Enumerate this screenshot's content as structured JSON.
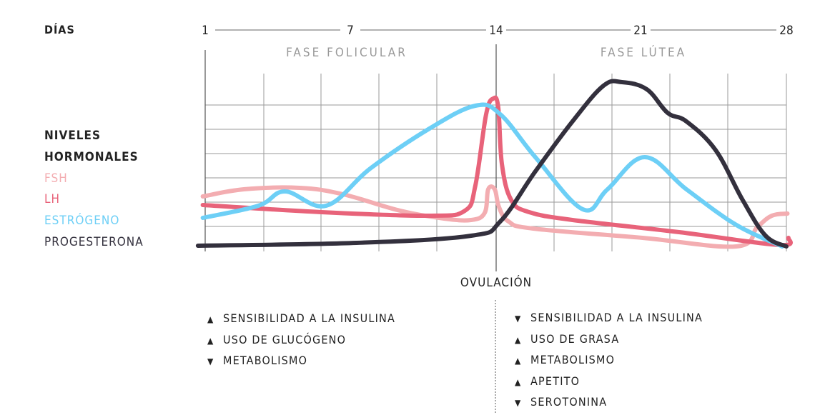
{
  "days_label": "DÍAS",
  "legend": {
    "title_line1": "NIVELES",
    "title_line2": "HORMONALES",
    "items": [
      {
        "name": "FSH",
        "color": "#f3adb1"
      },
      {
        "name": "LH",
        "color": "#e8637a"
      },
      {
        "name": "ESTRÓGENO",
        "color": "#6dcff6"
      },
      {
        "name": "PROGESTERONA",
        "color": "#33303d"
      }
    ]
  },
  "phases": {
    "follicular": "FASE FOLICULAR",
    "luteal": "FASE LÚTEA"
  },
  "ovulation_label": "OVULACIÓN",
  "chart_data": {
    "type": "line",
    "x_ticks": [
      "1",
      "7",
      "14",
      "21",
      "28"
    ],
    "xlim": [
      1,
      28
    ],
    "ylim": [
      0,
      100
    ],
    "grid": true,
    "series": [
      {
        "name": "FSH",
        "color": "#f3adb1",
        "points": [
          [
            0.9,
            30.8
          ],
          [
            2.6,
            34.8
          ],
          [
            4.9,
            35.6
          ],
          [
            6.7,
            32
          ],
          [
            9.4,
            22.8
          ],
          [
            11.5,
            18.4
          ],
          [
            12.8,
            17.6
          ],
          [
            13.45,
            21.6
          ],
          [
            13.62,
            34.8
          ],
          [
            13.93,
            34.8
          ],
          [
            14.14,
            24.8
          ],
          [
            14.6,
            16.8
          ],
          [
            15.8,
            12.8
          ],
          [
            21.1,
            7.6
          ],
          [
            25.6,
            2.8
          ],
          [
            26.6,
            13.6
          ],
          [
            27.3,
            20
          ],
          [
            28.05,
            21.2
          ]
        ]
      },
      {
        "name": "LH",
        "color": "#e8637a",
        "points": [
          [
            0.9,
            26
          ],
          [
            5.8,
            22
          ],
          [
            10.8,
            20
          ],
          [
            12.5,
            22.8
          ],
          [
            13.0,
            36.8
          ],
          [
            13.52,
            76.8
          ],
          [
            13.86,
            85.6
          ],
          [
            14.1,
            80.8
          ],
          [
            14.28,
            48.8
          ],
          [
            14.73,
            28.8
          ],
          [
            15.6,
            22
          ],
          [
            17.7,
            17.6
          ],
          [
            22.85,
            10.8
          ],
          [
            27.66,
            3.6
          ],
          [
            28.1,
            7.6
          ]
        ]
      },
      {
        "name": "ESTRÓGENO",
        "color": "#6dcff6",
        "points": [
          [
            0.9,
            18.8
          ],
          [
            3.2,
            25.6
          ],
          [
            4.3,
            33.6
          ],
          [
            6.0,
            25.6
          ],
          [
            8.0,
            46.8
          ],
          [
            10.8,
            68.8
          ],
          [
            13.0,
            81.6
          ],
          [
            14.2,
            76.8
          ],
          [
            15.9,
            52.8
          ],
          [
            18.2,
            23.6
          ],
          [
            19.4,
            34.8
          ],
          [
            21.2,
            52.8
          ],
          [
            23.2,
            34.8
          ],
          [
            25.6,
            14.8
          ],
          [
            27.8,
            2.8
          ]
        ]
      },
      {
        "name": "PROGESTERONA",
        "color": "#33303d",
        "points": [
          [
            0.7,
            3.2
          ],
          [
            7.3,
            4.8
          ],
          [
            12.8,
            8.8
          ],
          [
            14.2,
            16.8
          ],
          [
            15.9,
            44.8
          ],
          [
            17.7,
            72.8
          ],
          [
            19.2,
            92.8
          ],
          [
            20.1,
            94.8
          ],
          [
            21.3,
            90.8
          ],
          [
            22.3,
            77.6
          ],
          [
            23.2,
            72.8
          ],
          [
            24.6,
            56.8
          ],
          [
            25.9,
            28.8
          ],
          [
            27.0,
            8.8
          ],
          [
            28.0,
            2.8
          ]
        ]
      }
    ]
  },
  "follicular_effects": [
    {
      "direction": "up",
      "label": "SENSIBILIDAD A LA INSULINA"
    },
    {
      "direction": "up",
      "label": "USO DE GLUCÓGENO"
    },
    {
      "direction": "down",
      "label": "METABOLISMO"
    }
  ],
  "luteal_effects": [
    {
      "direction": "down",
      "label": "SENSIBILIDAD A LA INSULINA"
    },
    {
      "direction": "up",
      "label": "USO DE GRASA"
    },
    {
      "direction": "up",
      "label": "METABOLISMO"
    },
    {
      "direction": "up",
      "label": "APETITO"
    },
    {
      "direction": "down",
      "label": "SEROTONINA"
    }
  ]
}
